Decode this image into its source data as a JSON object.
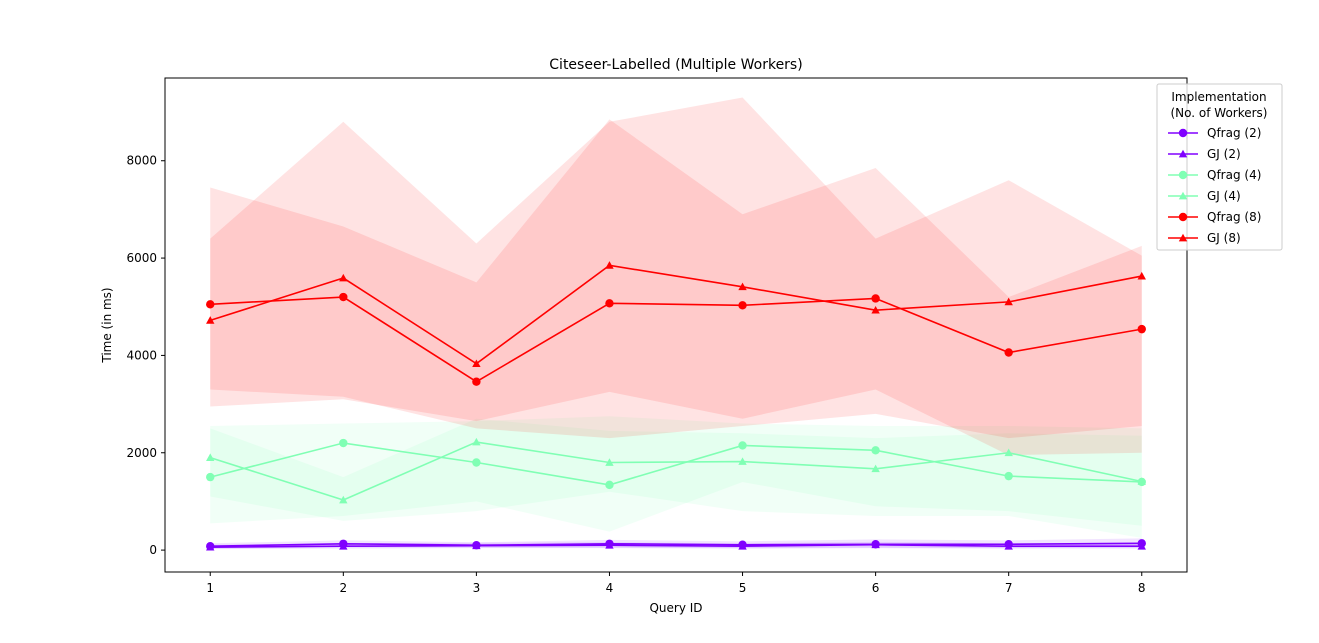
{
  "chart_data": {
    "type": "line",
    "title": "Citeseer-Labelled (Multiple Workers)",
    "xlabel": "Query ID",
    "ylabel": "Time (in ms)",
    "x": [
      1,
      2,
      3,
      4,
      5,
      6,
      7,
      8
    ],
    "xticks": [
      "1",
      "2",
      "3",
      "4",
      "5",
      "6",
      "7",
      "8"
    ],
    "yticks": [
      "0",
      "2000",
      "4000",
      "6000",
      "8000"
    ],
    "xlim": [
      0.66,
      8.34
    ],
    "ylim": [
      -450,
      9700
    ],
    "grid": false,
    "legend": {
      "title_line1": "Implementation",
      "title_line2": "(No. of Workers)",
      "placement": "outside right"
    },
    "series": [
      {
        "name": "Qfrag (2)",
        "color": "#8000ff",
        "marker": "circle",
        "values": [
          80,
          130,
          100,
          130,
          110,
          120,
          120,
          140
        ],
        "band_lower": [
          30,
          60,
          50,
          50,
          40,
          50,
          40,
          50
        ],
        "band_upper": [
          140,
          200,
          160,
          210,
          180,
          220,
          200,
          240
        ]
      },
      {
        "name": "GJ (2)",
        "color": "#8000ff",
        "marker": "triangle",
        "values": [
          60,
          80,
          90,
          100,
          80,
          110,
          80,
          80
        ],
        "band_lower": [
          20,
          30,
          40,
          40,
          30,
          40,
          30,
          30
        ],
        "band_upper": [
          110,
          140,
          150,
          160,
          140,
          170,
          140,
          150
        ]
      },
      {
        "name": "Qfrag (4)",
        "color": "#80ffb4",
        "marker": "circle",
        "values": [
          1500,
          2200,
          1800,
          1340,
          2150,
          2050,
          1520,
          1400
        ],
        "band_lower": [
          550,
          700,
          1000,
          380,
          1400,
          900,
          800,
          500
        ],
        "band_upper": [
          2550,
          2600,
          2650,
          2750,
          2600,
          2550,
          2550,
          2500
        ]
      },
      {
        "name": "GJ (4)",
        "color": "#80ffb4",
        "marker": "triangle",
        "values": [
          1900,
          1030,
          2220,
          1800,
          1820,
          1670,
          2000,
          1410
        ],
        "band_lower": [
          1100,
          600,
          800,
          1200,
          800,
          700,
          700,
          250
        ],
        "band_upper": [
          2500,
          1500,
          2700,
          2450,
          2400,
          2300,
          2400,
          2350
        ]
      },
      {
        "name": "Qfrag (8)",
        "color": "#ff0000",
        "marker": "circle",
        "values": [
          5050,
          5200,
          3460,
          5070,
          5030,
          5170,
          4060,
          4540
        ],
        "band_lower": [
          3300,
          3150,
          2500,
          2300,
          2550,
          2800,
          2300,
          2550
        ],
        "band_upper": [
          7450,
          6650,
          5500,
          8850,
          6900,
          7850,
          5200,
          6250
        ]
      },
      {
        "name": "GJ (8)",
        "color": "#ff0000",
        "marker": "triangle",
        "values": [
          4720,
          5590,
          3830,
          5850,
          5410,
          4930,
          5100,
          5630
        ],
        "band_lower": [
          2950,
          3100,
          2650,
          3250,
          2700,
          3300,
          1950,
          2000
        ],
        "band_upper": [
          6400,
          8800,
          6300,
          8800,
          9300,
          6400,
          7600,
          6050
        ]
      }
    ]
  }
}
